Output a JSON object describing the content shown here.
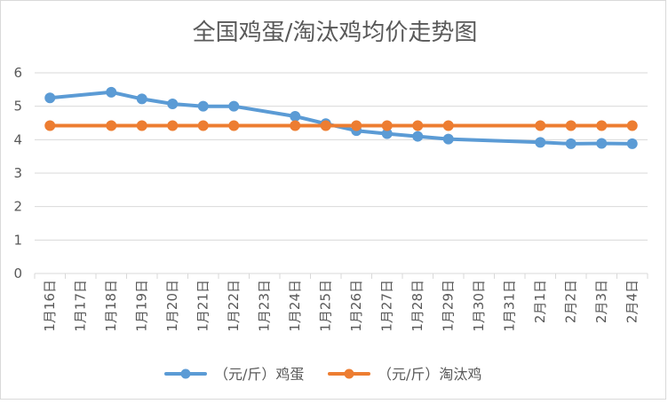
{
  "chart_data": {
    "type": "line",
    "title": "全国鸡蛋/淘汰鸡均价走势图",
    "xlabel": "",
    "ylabel": "",
    "categories": [
      "1月16日",
      "1月17日",
      "1月18日",
      "1月19日",
      "1月20日",
      "1月21日",
      "1月22日",
      "1月23日",
      "1月24日",
      "1月25日",
      "1月26日",
      "1月27日",
      "1月28日",
      "1月29日",
      "1月30日",
      "1月31日",
      "2月1日",
      "2月2日",
      "2月3日",
      "2月4日"
    ],
    "ylim": [
      0,
      6
    ],
    "yticks": [
      "0",
      "1",
      "2",
      "3",
      "4",
      "5",
      "6"
    ],
    "grid": true,
    "legend_position": "bottom",
    "series": [
      {
        "name": "（元/斤）鸡蛋",
        "color": "#5B9BD5",
        "values": [
          5.25,
          null,
          5.42,
          5.22,
          5.07,
          5.0,
          5.0,
          null,
          4.7,
          4.48,
          4.27,
          4.18,
          4.1,
          4.02,
          null,
          null,
          3.92,
          3.88,
          3.89,
          3.88
        ]
      },
      {
        "name": "（元/斤）淘汰鸡",
        "color": "#ED7D31",
        "values": [
          4.42,
          null,
          4.42,
          4.42,
          4.42,
          4.42,
          4.42,
          null,
          4.42,
          4.42,
          4.42,
          4.42,
          4.42,
          4.42,
          null,
          null,
          4.42,
          4.42,
          4.42,
          4.42
        ]
      }
    ]
  }
}
